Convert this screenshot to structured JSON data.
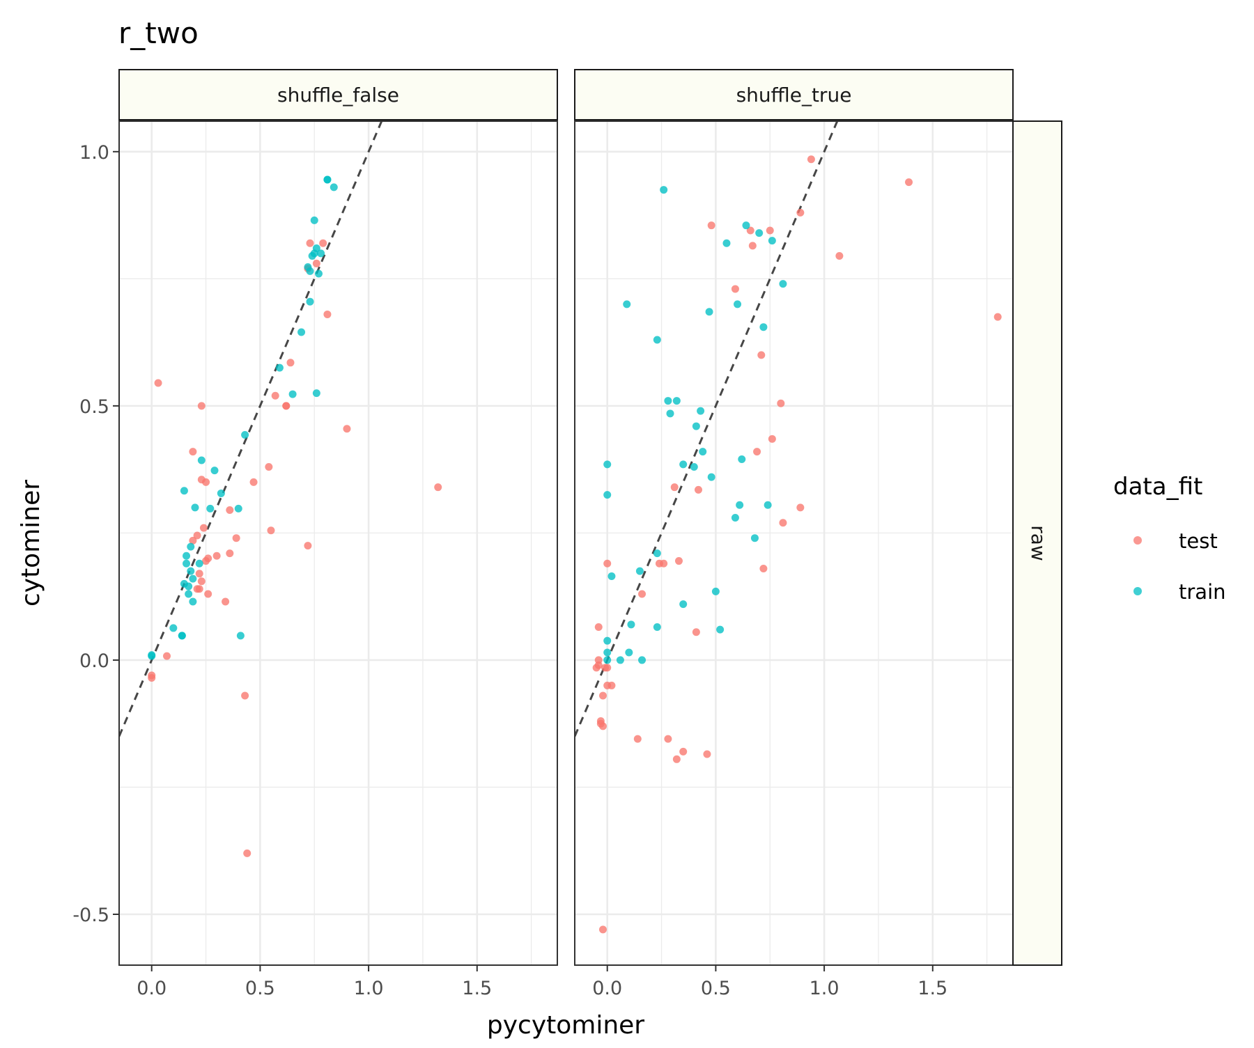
{
  "chart_data": {
    "type": "scatter",
    "title": "r_two",
    "xlabel": "pycytominer",
    "ylabel": "cytominer",
    "xlim": [
      -0.15,
      1.87
    ],
    "ylim": [
      -0.6,
      1.06
    ],
    "x_ticks": [
      0.0,
      0.5,
      1.0,
      1.5
    ],
    "x_tick_labels": [
      "0.0",
      "0.5",
      "1.0",
      "1.5"
    ],
    "y_ticks": [
      -0.5,
      0.0,
      0.5,
      1.0
    ],
    "y_tick_labels": [
      "-0.5",
      "0.0",
      "0.5",
      "1.0"
    ],
    "grid": true,
    "facet_row_label": "raw",
    "reference_line": {
      "style": "dashed",
      "slope": 1,
      "intercept": 0
    },
    "legend": {
      "title": "data_fit",
      "placement": "right",
      "entries": [
        {
          "label": "test",
          "color": "#F8766D"
        },
        {
          "label": "train",
          "color": "#00BFC4"
        }
      ]
    },
    "panels": [
      {
        "label": "shuffle_false",
        "series": [
          {
            "name": "test",
            "color": "#F8766D",
            "points": [
              [
                0.0,
                -0.03
              ],
              [
                0.0,
                -0.035
              ],
              [
                0.07,
                0.008
              ],
              [
                0.03,
                0.545
              ],
              [
                0.23,
                0.5
              ],
              [
                0.19,
                0.41
              ],
              [
                0.23,
                0.355
              ],
              [
                0.25,
                0.35
              ],
              [
                0.19,
                0.235
              ],
              [
                0.21,
                0.245
              ],
              [
                0.24,
                0.26
              ],
              [
                0.25,
                0.195
              ],
              [
                0.26,
                0.2
              ],
              [
                0.22,
                0.17
              ],
              [
                0.23,
                0.155
              ],
              [
                0.21,
                0.14
              ],
              [
                0.22,
                0.14
              ],
              [
                0.26,
                0.13
              ],
              [
                0.3,
                0.205
              ],
              [
                0.34,
                0.115
              ],
              [
                0.36,
                0.295
              ],
              [
                0.36,
                0.21
              ],
              [
                0.39,
                0.24
              ],
              [
                0.47,
                0.35
              ],
              [
                0.54,
                0.38
              ],
              [
                0.55,
                0.255
              ],
              [
                0.57,
                0.52
              ],
              [
                0.62,
                0.5
              ],
              [
                0.62,
                0.5
              ],
              [
                0.64,
                0.585
              ],
              [
                0.72,
                0.225
              ],
              [
                0.43,
                -0.07
              ],
              [
                0.44,
                -0.38
              ],
              [
                0.72,
                0.77
              ],
              [
                0.73,
                0.82
              ],
              [
                0.76,
                0.78
              ],
              [
                0.79,
                0.82
              ],
              [
                0.81,
                0.68
              ],
              [
                0.9,
                0.455
              ],
              [
                1.32,
                0.34
              ]
            ]
          },
          {
            "name": "train",
            "color": "#00BFC4",
            "points": [
              [
                0.0,
                0.008
              ],
              [
                0.0,
                0.01
              ],
              [
                0.1,
                0.063
              ],
              [
                0.14,
                0.048
              ],
              [
                0.14,
                0.048
              ],
              [
                0.15,
                0.333
              ],
              [
                0.15,
                0.15
              ],
              [
                0.16,
                0.205
              ],
              [
                0.16,
                0.19
              ],
              [
                0.17,
                0.145
              ],
              [
                0.17,
                0.13
              ],
              [
                0.18,
                0.223
              ],
              [
                0.18,
                0.175
              ],
              [
                0.19,
                0.16
              ],
              [
                0.19,
                0.115
              ],
              [
                0.2,
                0.3
              ],
              [
                0.22,
                0.19
              ],
              [
                0.23,
                0.393
              ],
              [
                0.27,
                0.298
              ],
              [
                0.29,
                0.373
              ],
              [
                0.32,
                0.328
              ],
              [
                0.4,
                0.298
              ],
              [
                0.41,
                0.048
              ],
              [
                0.43,
                0.443
              ],
              [
                0.59,
                0.575
              ],
              [
                0.65,
                0.523
              ],
              [
                0.69,
                0.645
              ],
              [
                0.72,
                0.773
              ],
              [
                0.73,
                0.765
              ],
              [
                0.73,
                0.705
              ],
              [
                0.74,
                0.795
              ],
              [
                0.75,
                0.8
              ],
              [
                0.75,
                0.865
              ],
              [
                0.76,
                0.81
              ],
              [
                0.76,
                0.525
              ],
              [
                0.77,
                0.76
              ],
              [
                0.78,
                0.8
              ],
              [
                0.81,
                0.945
              ],
              [
                0.81,
                0.945
              ],
              [
                0.84,
                0.93
              ]
            ]
          }
        ]
      },
      {
        "label": "shuffle_true",
        "series": [
          {
            "name": "test",
            "color": "#F8766D",
            "points": [
              [
                -0.05,
                -0.015
              ],
              [
                -0.04,
                -0.01
              ],
              [
                -0.04,
                0.0
              ],
              [
                -0.04,
                0.065
              ],
              [
                -0.03,
                -0.12
              ],
              [
                -0.03,
                -0.125
              ],
              [
                -0.02,
                -0.13
              ],
              [
                -0.02,
                -0.07
              ],
              [
                -0.02,
                -0.53
              ],
              [
                -0.01,
                -0.015
              ],
              [
                0.0,
                -0.05
              ],
              [
                0.0,
                0.19
              ],
              [
                0.0,
                -0.015
              ],
              [
                0.02,
                -0.05
              ],
              [
                0.14,
                -0.155
              ],
              [
                0.16,
                0.13
              ],
              [
                0.24,
                0.19
              ],
              [
                0.26,
                0.19
              ],
              [
                0.28,
                -0.155
              ],
              [
                0.31,
                0.34
              ],
              [
                0.32,
                -0.195
              ],
              [
                0.33,
                0.195
              ],
              [
                0.35,
                -0.18
              ],
              [
                0.41,
                0.055
              ],
              [
                0.42,
                0.335
              ],
              [
                0.46,
                -0.185
              ],
              [
                0.48,
                0.855
              ],
              [
                0.59,
                0.73
              ],
              [
                0.66,
                0.845
              ],
              [
                0.67,
                0.815
              ],
              [
                0.69,
                0.41
              ],
              [
                0.71,
                0.6
              ],
              [
                0.72,
                0.18
              ],
              [
                0.75,
                0.845
              ],
              [
                0.76,
                0.435
              ],
              [
                0.8,
                0.505
              ],
              [
                0.81,
                0.27
              ],
              [
                0.89,
                0.88
              ],
              [
                0.89,
                0.3
              ],
              [
                0.94,
                0.985
              ],
              [
                1.07,
                0.795
              ],
              [
                1.39,
                0.94
              ],
              [
                1.8,
                0.675
              ]
            ]
          },
          {
            "name": "train",
            "color": "#00BFC4",
            "points": [
              [
                0.0,
                0.385
              ],
              [
                0.0,
                0.325
              ],
              [
                0.0,
                0.038
              ],
              [
                0.0,
                0.015
              ],
              [
                0.0,
                0.0
              ],
              [
                0.02,
                0.165
              ],
              [
                0.06,
                0.0
              ],
              [
                0.09,
                0.7
              ],
              [
                0.1,
                0.015
              ],
              [
                0.11,
                0.07
              ],
              [
                0.15,
                0.175
              ],
              [
                0.16,
                0.0
              ],
              [
                0.23,
                0.63
              ],
              [
                0.23,
                0.21
              ],
              [
                0.23,
                0.065
              ],
              [
                0.26,
                0.925
              ],
              [
                0.28,
                0.51
              ],
              [
                0.29,
                0.485
              ],
              [
                0.32,
                0.51
              ],
              [
                0.35,
                0.385
              ],
              [
                0.35,
                0.11
              ],
              [
                0.4,
                0.38
              ],
              [
                0.41,
                0.46
              ],
              [
                0.43,
                0.49
              ],
              [
                0.44,
                0.41
              ],
              [
                0.47,
                0.685
              ],
              [
                0.48,
                0.36
              ],
              [
                0.5,
                0.135
              ],
              [
                0.52,
                0.06
              ],
              [
                0.55,
                0.82
              ],
              [
                0.59,
                0.28
              ],
              [
                0.6,
                0.7
              ],
              [
                0.61,
                0.305
              ],
              [
                0.62,
                0.395
              ],
              [
                0.64,
                0.855
              ],
              [
                0.68,
                0.24
              ],
              [
                0.7,
                0.84
              ],
              [
                0.72,
                0.655
              ],
              [
                0.74,
                0.305
              ],
              [
                0.76,
                0.825
              ],
              [
                0.81,
                0.74
              ]
            ]
          }
        ]
      }
    ]
  }
}
